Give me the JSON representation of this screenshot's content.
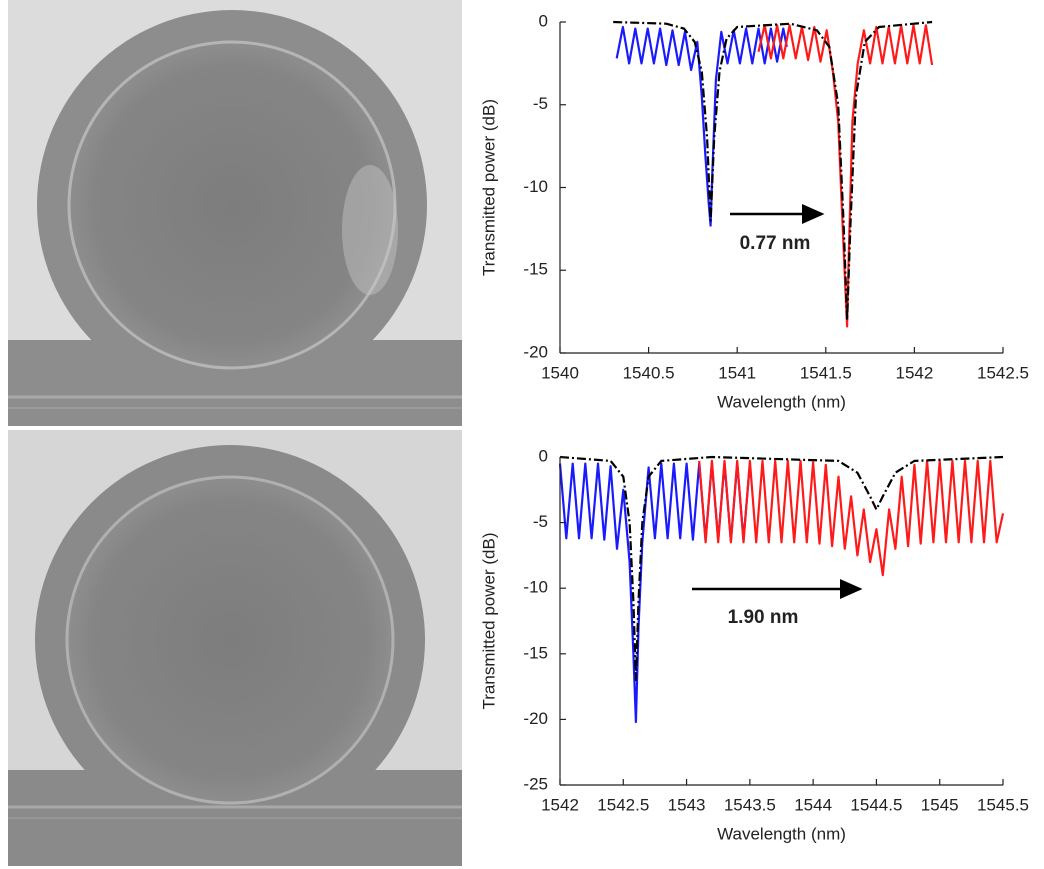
{
  "chart_data": [
    {
      "type": "line",
      "xlabel": "Wavelength (nm)",
      "ylabel": "Transmitted power (dB)",
      "annotation": "0.77 nm",
      "xlim": [
        1540,
        1542.5
      ],
      "xticks": [
        1540,
        1540.5,
        1541,
        1541.5,
        1542,
        1542.5
      ],
      "ylim": [
        -20,
        0
      ],
      "yticks": [
        -20,
        -15,
        -10,
        -5,
        0
      ],
      "series": [
        {
          "color": "#1a1aff",
          "linestyle": "solid",
          "x": [
            1540.32,
            1540.355,
            1540.39,
            1540.425,
            1540.46,
            1540.495,
            1540.53,
            1540.565,
            1540.6,
            1540.635,
            1540.67,
            1540.705,
            1540.74,
            1540.775,
            1540.8,
            1540.82,
            1540.84,
            1540.85,
            1540.86,
            1540.88,
            1540.91,
            1540.945,
            1540.98,
            1541.015,
            1541.05,
            1541.085,
            1541.12,
            1541.155,
            1541.19,
            1541.225,
            1541.26,
            1541.28
          ],
          "values": [
            -2.2,
            -0.3,
            -2.5,
            -0.4,
            -2.5,
            -0.4,
            -2.5,
            -0.4,
            -2.6,
            -0.5,
            -2.6,
            -0.6,
            -2.9,
            -1.2,
            -4.5,
            -8,
            -11,
            -12.3,
            -9,
            -3.5,
            -0.6,
            -2.5,
            -0.5,
            -2.5,
            -0.4,
            -2.5,
            -0.4,
            -2.5,
            -0.4,
            -2.4,
            -0.4,
            -1.5
          ]
        },
        {
          "color": "#ff1a1a",
          "linestyle": "solid",
          "x": [
            1541.12,
            1541.155,
            1541.19,
            1541.225,
            1541.26,
            1541.295,
            1541.33,
            1541.365,
            1541.4,
            1541.435,
            1541.47,
            1541.505,
            1541.54,
            1541.57,
            1541.59,
            1541.61,
            1541.62,
            1541.63,
            1541.65,
            1541.68,
            1541.715,
            1541.75,
            1541.785,
            1541.82,
            1541.855,
            1541.89,
            1541.925,
            1541.96,
            1541.995,
            1542.03,
            1542.065,
            1542.1
          ],
          "values": [
            -1.8,
            -0.2,
            -2.2,
            -0.2,
            -2.2,
            -0.2,
            -2.2,
            -0.3,
            -2.3,
            -0.3,
            -2.4,
            -0.5,
            -3,
            -6,
            -11,
            -16,
            -18.4,
            -14,
            -6,
            -2.5,
            -0.5,
            -2.5,
            -0.3,
            -2.5,
            -0.3,
            -2.5,
            -0.2,
            -2.5,
            -0.2,
            -2.5,
            -0.2,
            -2.6
          ]
        },
        {
          "color": "#000000",
          "linestyle": "dashdot",
          "x": [
            1540.3,
            1540.6,
            1540.7,
            1540.76,
            1540.8,
            1540.83,
            1540.85,
            1540.87,
            1540.9,
            1540.94,
            1541.0,
            1541.3,
            1541.45,
            1541.52,
            1541.57,
            1541.6,
            1541.62,
            1541.64,
            1541.67,
            1541.72,
            1541.8,
            1542.1
          ],
          "values": [
            0,
            -0.1,
            -0.4,
            -1.2,
            -3,
            -7,
            -12,
            -7,
            -3,
            -1,
            -0.3,
            -0.1,
            -0.5,
            -1.5,
            -5,
            -12,
            -18,
            -12,
            -4.5,
            -1.2,
            -0.3,
            0
          ]
        }
      ]
    },
    {
      "type": "line",
      "xlabel": "Wavelength (nm)",
      "ylabel": "Transmitted power (dB)",
      "annotation": "1.90 nm",
      "xlim": [
        1542,
        1545.5
      ],
      "xticks": [
        1542,
        1542.5,
        1543,
        1543.5,
        1544,
        1544.5,
        1545,
        1545.5
      ],
      "ylim": [
        -25,
        0
      ],
      "yticks": [
        -25,
        -20,
        -15,
        -10,
        -5,
        0
      ],
      "series": [
        {
          "color": "#1a1aff",
          "linestyle": "solid",
          "x": [
            1542,
            1542.05,
            1542.1,
            1542.15,
            1542.2,
            1542.25,
            1542.3,
            1542.35,
            1542.4,
            1542.45,
            1542.5,
            1542.55,
            1542.58,
            1542.6,
            1542.62,
            1542.65,
            1542.7,
            1542.75,
            1542.8,
            1542.85,
            1542.9,
            1542.95,
            1543,
            1543.05,
            1543.1,
            1543.15,
            1543.2,
            1543.25,
            1543.3,
            1543.35,
            1543.4,
            1543.45,
            1543.5
          ],
          "values": [
            -0.5,
            -6.2,
            -0.5,
            -6.2,
            -0.5,
            -6.2,
            -0.5,
            -6.3,
            -0.7,
            -7,
            -2.5,
            -8,
            -15,
            -20.2,
            -13,
            -6.5,
            -0.8,
            -6.2,
            -0.5,
            -6.2,
            -0.5,
            -6.2,
            -0.5,
            -6.3,
            -0.5,
            -6.3,
            -0.5,
            -6.3,
            -0.5,
            -6.4,
            -0.5,
            -6.3,
            -0.5
          ]
        },
        {
          "color": "#ff1a1a",
          "linestyle": "solid",
          "x": [
            1543.1,
            1543.15,
            1543.2,
            1543.25,
            1543.3,
            1543.35,
            1543.4,
            1543.45,
            1543.5,
            1543.55,
            1543.6,
            1543.65,
            1543.7,
            1543.75,
            1543.8,
            1543.85,
            1543.9,
            1543.95,
            1544,
            1544.05,
            1544.1,
            1544.15,
            1544.2,
            1544.25,
            1544.3,
            1544.35,
            1544.4,
            1544.45,
            1544.5,
            1544.55,
            1544.6,
            1544.65,
            1544.7,
            1544.75,
            1544.8,
            1544.85,
            1544.9,
            1544.95,
            1545,
            1545.05,
            1545.1,
            1545.15,
            1545.2,
            1545.25,
            1545.3,
            1545.35,
            1545.4,
            1545.45,
            1545.5
          ],
          "values": [
            -0.3,
            -6.5,
            -0.3,
            -6.5,
            -0.3,
            -6.5,
            -0.3,
            -6.5,
            -0.3,
            -6.5,
            -0.3,
            -6.5,
            -0.3,
            -6.5,
            -0.3,
            -6.5,
            -0.3,
            -6.5,
            -0.4,
            -6.6,
            -0.6,
            -6.8,
            -1.5,
            -7,
            -3,
            -7.5,
            -4,
            -8,
            -5.5,
            -9,
            -4,
            -7,
            -1.5,
            -6.8,
            -0.6,
            -6.6,
            -0.3,
            -6.5,
            -0.3,
            -6.5,
            -0.3,
            -6.5,
            -0.3,
            -6.5,
            -0.3,
            -6.5,
            -0.3,
            -6.5,
            -4.3
          ]
        },
        {
          "color": "#000000",
          "linestyle": "dashdot",
          "x": [
            1542,
            1542.4,
            1542.5,
            1542.55,
            1542.58,
            1542.6,
            1542.62,
            1542.65,
            1542.7,
            1542.8,
            1543.2,
            1544.2,
            1544.35,
            1544.45,
            1544.5,
            1544.55,
            1544.65,
            1544.8,
            1545.5
          ],
          "values": [
            0,
            -0.3,
            -1.5,
            -5,
            -11,
            -17,
            -11,
            -5,
            -1.5,
            -0.3,
            0,
            -0.3,
            -1.2,
            -3,
            -4,
            -3,
            -1.2,
            -0.3,
            0
          ]
        }
      ]
    }
  ]
}
